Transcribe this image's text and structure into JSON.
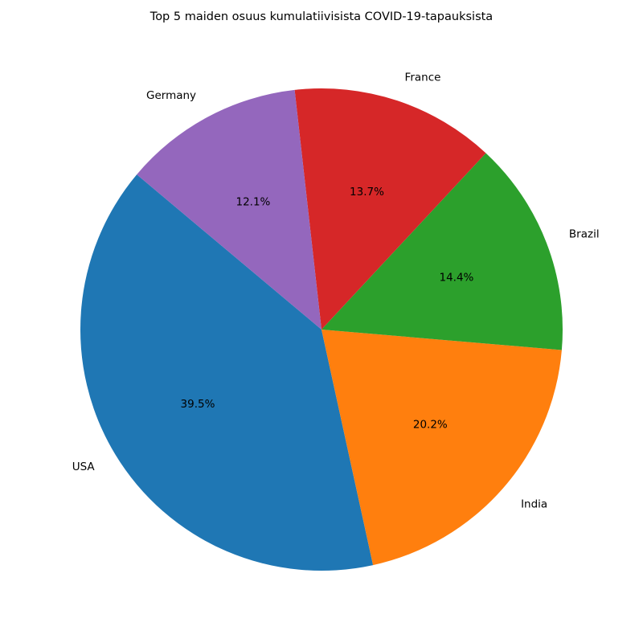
{
  "chart_data": {
    "type": "pie",
    "title": "Top 5 maiden osuus kumulatiivisista COVID-19-tapauksista",
    "slices": [
      {
        "label": "USA",
        "value": 39.5,
        "pct_label": "39.5%",
        "color": "#1f77b4"
      },
      {
        "label": "India",
        "value": 20.2,
        "pct_label": "20.2%",
        "color": "#ff7f0e"
      },
      {
        "label": "Brazil",
        "value": 14.4,
        "pct_label": "14.4%",
        "color": "#2ca02c"
      },
      {
        "label": "France",
        "value": 13.7,
        "pct_label": "13.7%",
        "color": "#d62728"
      },
      {
        "label": "Germany",
        "value": 12.1,
        "pct_label": "12.1%",
        "color": "#9467bd"
      }
    ],
    "start_angle_deg": 140,
    "direction": "counterclockwise",
    "legend": "none"
  }
}
